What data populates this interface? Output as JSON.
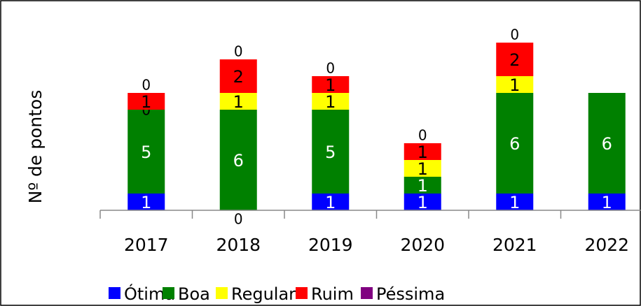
{
  "chart_data": {
    "type": "stacked_bar",
    "y_label": "Nº de pontos",
    "categories": [
      "2017",
      "2018",
      "2019",
      "2020",
      "2021",
      "2022"
    ],
    "series": [
      {
        "name": "Ótima",
        "color": "#0000ff",
        "values": [
          1,
          0,
          1,
          1,
          1,
          1
        ]
      },
      {
        "name": "Boa",
        "color": "#008000",
        "values": [
          5,
          6,
          5,
          1,
          6,
          6
        ]
      },
      {
        "name": "Regular",
        "color": "#ffff00",
        "values": [
          0,
          1,
          1,
          1,
          1,
          null
        ]
      },
      {
        "name": "Ruim",
        "color": "#ff0000",
        "values": [
          1,
          2,
          1,
          1,
          2,
          null
        ]
      },
      {
        "name": "Péssima",
        "color": "#800080",
        "values": [
          0,
          0,
          0,
          0,
          0,
          null
        ]
      }
    ],
    "ylim": [
      0,
      11.5
    ],
    "legend": "bottom"
  }
}
